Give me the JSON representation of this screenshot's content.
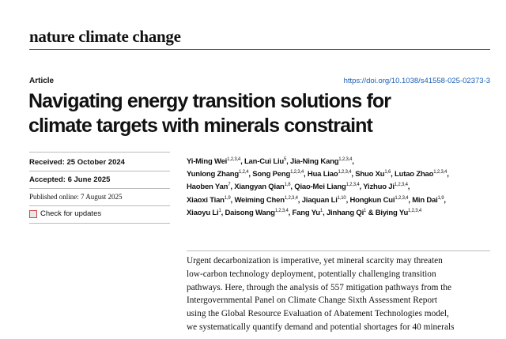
{
  "journal": "nature climate change",
  "article_type": "Article",
  "doi": "https://doi.org/10.1038/s41558-025-02373-3",
  "title_lines": [
    "Navigating energy transition solutions for",
    "climate targets with minerals constraint"
  ],
  "dates": {
    "received": "Received: 25 October 2024",
    "accepted": "Accepted: 6 June 2025",
    "published": "Published online: 7 August 2025"
  },
  "check_updates": "Check for updates",
  "author_lines": [
    [
      {
        "name": "Yi-Ming Wei",
        "sup": "1,2,3,4",
        "sep": ", "
      },
      {
        "name": "Lan-Cui Liu",
        "sup": "5",
        "sep": ", "
      },
      {
        "name": "Jia-Ning Kang",
        "sup": "1,2,3,4",
        "sep": ","
      }
    ],
    [
      {
        "name": "Yunlong Zhang",
        "sup": "1,2,4",
        "sep": ", "
      },
      {
        "name": "Song Peng",
        "sup": "1,2,3,4",
        "sep": ", "
      },
      {
        "name": "Hua Liao",
        "sup": "1,2,3,4",
        "sep": ", "
      },
      {
        "name": "Shuo Xu",
        "sup": "1,6",
        "sep": ", "
      },
      {
        "name": "Lutao Zhao",
        "sup": "1,2,3,4",
        "sep": ","
      }
    ],
    [
      {
        "name": "Haoben Yan",
        "sup": "7",
        "sep": ", "
      },
      {
        "name": "Xiangyan Qian",
        "sup": "1,8",
        "sep": ", "
      },
      {
        "name": "Qiao-Mei Liang",
        "sup": "1,2,3,4",
        "sep": ", "
      },
      {
        "name": "Yizhuo Ji",
        "sup": "1,2,3,4",
        "sep": ","
      }
    ],
    [
      {
        "name": "Xiaoxi Tian",
        "sup": "1,9",
        "sep": ", "
      },
      {
        "name": "Weiming Chen",
        "sup": "1,2,3,4",
        "sep": ", "
      },
      {
        "name": "Jiaquan Li",
        "sup": "1,10",
        "sep": ", "
      },
      {
        "name": "Hongkun Cui",
        "sup": "1,2,3,4",
        "sep": ", "
      },
      {
        "name": "Min Dai",
        "sup": "1,9",
        "sep": ","
      }
    ],
    [
      {
        "name": "Xiaoyu Li",
        "sup": "1",
        "sep": ", "
      },
      {
        "name": "Daisong Wang",
        "sup": "1,2,3,4",
        "sep": ", "
      },
      {
        "name": "Fang Yu",
        "sup": "1",
        "sep": ", "
      },
      {
        "name": "Jinhang Qi",
        "sup": "1",
        "sep": " & "
      },
      {
        "name": "Biying Yu",
        "sup": "1,2,3,4"
      }
    ]
  ],
  "abstract_lines": [
    "Urgent decarbonization is imperative, yet mineral scarcity may threaten",
    "low-carbon technology deployment, potentially challenging transition",
    "pathways. Here, through the analysis of 557 mitigation pathways from the",
    "Intergovernmental Panel on Climate Change Sixth Assessment Report",
    "using the Global Resource Evaluation of Abatement Technologies model,",
    "we systematically quantify demand and potential shortages for 40 minerals"
  ]
}
